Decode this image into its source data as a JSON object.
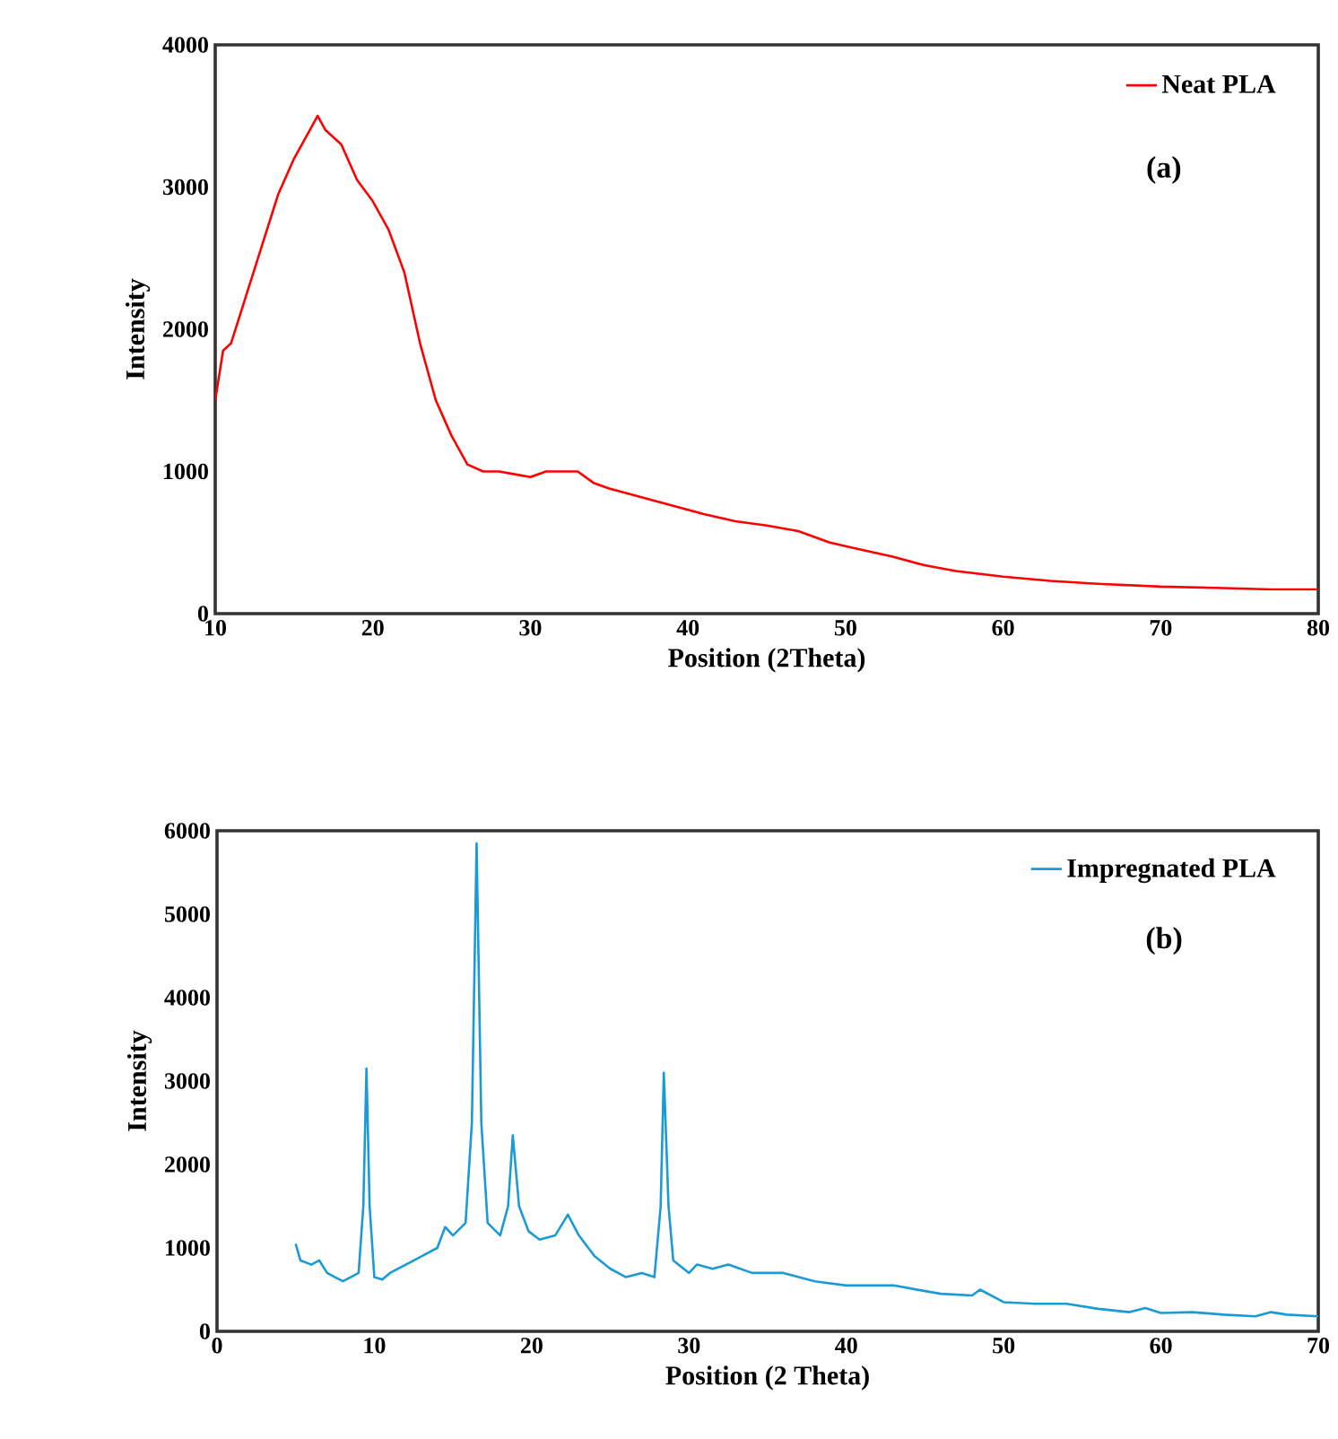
{
  "chart_data": [
    {
      "type": "line",
      "xlabel": "Position (2Theta)",
      "ylabel": "Intensity",
      "xlim": [
        10,
        80
      ],
      "ylim": [
        0,
        4000
      ],
      "xticks": [
        10,
        20,
        30,
        40,
        50,
        60,
        70,
        80
      ],
      "yticks": [
        0,
        1000,
        2000,
        3000,
        4000
      ],
      "legend": "top right",
      "grid": false,
      "annotations": [
        "(a)"
      ],
      "x": [
        10,
        10.5,
        11,
        12,
        13,
        14,
        15,
        16,
        16.5,
        17,
        18,
        19,
        20,
        21,
        22,
        23,
        24,
        25,
        26,
        27,
        28,
        29,
        30,
        31,
        32,
        33,
        34,
        35,
        37,
        39,
        41,
        43,
        45,
        47,
        49,
        51,
        53,
        55,
        57,
        60,
        63,
        66,
        70,
        74,
        77,
        80
      ],
      "series": [
        {
          "name": "Neat PLA",
          "color": "#ff0000",
          "values": [
            1500,
            1850,
            1900,
            2250,
            2600,
            2950,
            3200,
            3400,
            3500,
            3400,
            3300,
            3050,
            2900,
            2700,
            2400,
            1900,
            1500,
            1250,
            1050,
            1000,
            1000,
            980,
            960,
            1000,
            1000,
            1000,
            920,
            880,
            820,
            760,
            700,
            650,
            620,
            580,
            500,
            450,
            400,
            340,
            300,
            260,
            230,
            210,
            190,
            180,
            170,
            170
          ]
        }
      ]
    },
    {
      "type": "line",
      "xlabel": "Position (2 Theta)",
      "ylabel": "Intensity",
      "xlim": [
        0,
        70
      ],
      "ylim": [
        0,
        6000
      ],
      "xticks": [
        0,
        10,
        20,
        30,
        40,
        50,
        60,
        70
      ],
      "yticks": [
        0,
        1000,
        2000,
        3000,
        4000,
        5000,
        6000
      ],
      "legend": "top right",
      "grid": false,
      "annotations": [
        "(b)"
      ],
      "x": [
        5,
        5.3,
        6,
        6.5,
        7,
        7.5,
        8,
        8.5,
        9,
        9.3,
        9.5,
        9.7,
        10,
        10.5,
        11,
        12,
        13,
        14,
        14.5,
        15,
        15.8,
        16.2,
        16.5,
        16.8,
        17.2,
        18,
        18.5,
        18.8,
        19.2,
        19.8,
        20.5,
        21.5,
        22.3,
        23,
        24,
        25,
        26,
        27,
        27.8,
        28.2,
        28.4,
        28.7,
        29,
        30,
        30.5,
        31.5,
        32.5,
        34,
        36,
        38,
        40,
        43,
        46,
        48,
        48.5,
        50,
        52,
        54,
        56,
        58,
        59,
        60,
        62,
        64,
        66,
        67,
        68,
        70
      ],
      "series": [
        {
          "name": "Impregnated PLA",
          "color": "#1a9ad6",
          "values": [
            1050,
            850,
            800,
            850,
            700,
            650,
            600,
            650,
            700,
            1500,
            3150,
            1500,
            650,
            620,
            700,
            800,
            900,
            1000,
            1250,
            1150,
            1300,
            2500,
            5850,
            2500,
            1300,
            1150,
            1500,
            2350,
            1500,
            1200,
            1100,
            1150,
            1400,
            1150,
            900,
            750,
            650,
            700,
            650,
            1500,
            3100,
            1500,
            850,
            700,
            800,
            750,
            800,
            700,
            700,
            600,
            550,
            550,
            450,
            430,
            500,
            350,
            330,
            330,
            270,
            230,
            280,
            220,
            230,
            200,
            180,
            230,
            200,
            180
          ]
        }
      ]
    }
  ]
}
